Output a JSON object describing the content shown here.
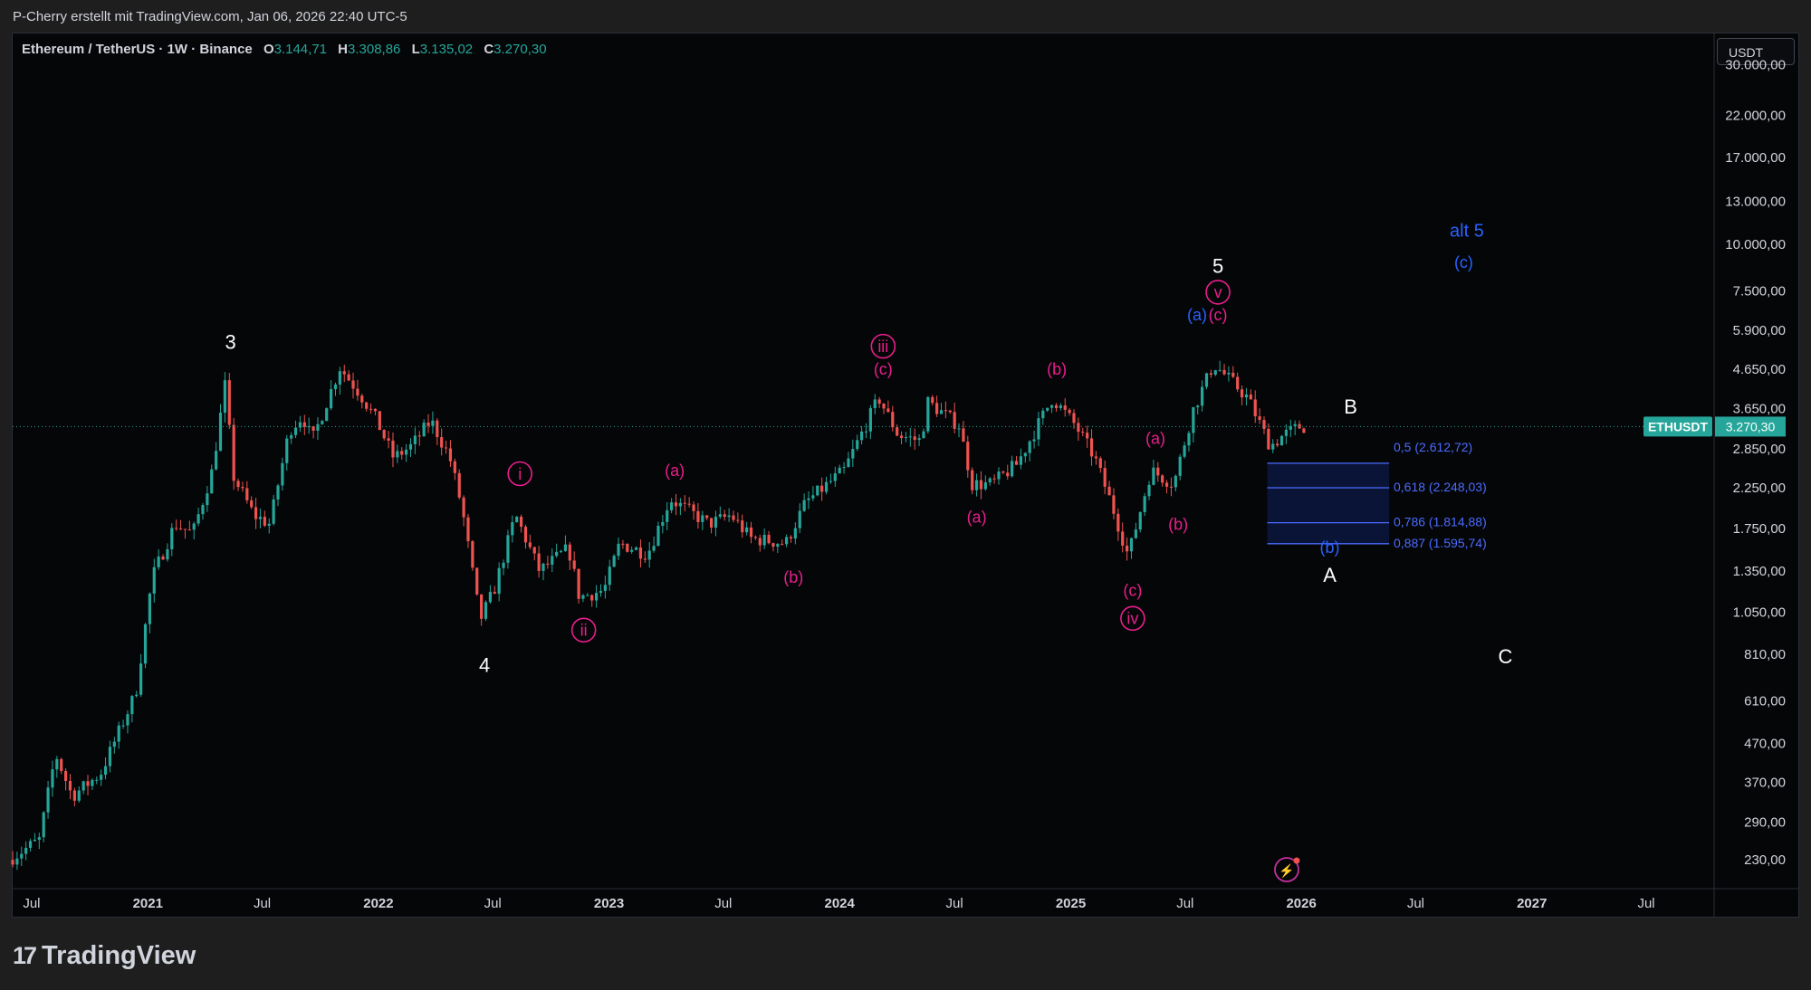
{
  "header": {
    "attribution": "P-Cherry erstellt mit TradingView.com, Jan 06, 2026 22:40 UTC-5"
  },
  "legend": {
    "symbol": "Ethereum / TetherUS · 1W · Binance",
    "open_key": "O",
    "open": "3.144,71",
    "high_key": "H",
    "high": "3.308,86",
    "low_key": "L",
    "low": "3.135,02",
    "close_key": "C",
    "close": "3.270,30"
  },
  "currency_button": "USDT",
  "price_tag": {
    "symbol": "ETHUSDT",
    "value": "3.270,30"
  },
  "footer": {
    "brand": "TradingView",
    "logo_glyph": "17"
  },
  "colors": {
    "up": "#26a69a",
    "down": "#ef5350",
    "wave_white": "#ffffff",
    "wave_magenta": "#e91e8c",
    "wave_blue": "#2962ff",
    "fib": "#4a6cff"
  },
  "chart_data": {
    "type": "candlestick",
    "interval": "1W",
    "scale": "log",
    "y_ticks": [
      "30.000,00",
      "22.000,00",
      "17.000,00",
      "13.000,00",
      "10.000,00",
      "7.500,00",
      "5.900,00",
      "4.650,00",
      "3.650,00",
      "2.850,00",
      "2.250,00",
      "1.750,00",
      "1.350,00",
      "1.050,00",
      "810,00",
      "610,00",
      "470,00",
      "370,00",
      "290,00",
      "230,00"
    ],
    "y_tick_values": [
      30000,
      22000,
      17000,
      13000,
      10000,
      7500,
      5900,
      4650,
      3650,
      2850,
      2250,
      1750,
      1350,
      1050,
      810,
      610,
      470,
      370,
      290,
      230
    ],
    "x_ticks": [
      "Jul",
      "2021",
      "Jul",
      "2022",
      "Jul",
      "2023",
      "Jul",
      "2024",
      "Jul",
      "2025",
      "Jul",
      "2026",
      "Jul",
      "2027",
      "Jul"
    ],
    "x_tick_dates": [
      "2020-07-01",
      "2021-01-01",
      "2021-07-01",
      "2022-01-01",
      "2022-07-01",
      "2023-01-01",
      "2023-07-01",
      "2024-01-01",
      "2024-07-01",
      "2025-01-01",
      "2025-07-01",
      "2026-01-01",
      "2026-07-01",
      "2027-01-01",
      "2027-07-01"
    ],
    "x_range": [
      "2020-06-01",
      "2027-10-15"
    ],
    "y_range": [
      195,
      32000
    ],
    "last_price": 3270.3,
    "price_path": [
      [
        "2020-06-01",
        230
      ],
      [
        "2020-07-20",
        260
      ],
      [
        "2020-08-15",
        440
      ],
      [
        "2020-09-10",
        340
      ],
      [
        "2020-10-25",
        390
      ],
      [
        "2020-12-20",
        640
      ],
      [
        "2021-01-15",
        1300
      ],
      [
        "2021-02-20",
        1800
      ],
      [
        "2021-03-20",
        1700
      ],
      [
        "2021-04-20",
        2500
      ],
      [
        "2021-05-10",
        4200
      ],
      [
        "2021-05-24",
        2400
      ],
      [
        "2021-06-25",
        1900
      ],
      [
        "2021-07-20",
        1800
      ],
      [
        "2021-08-20",
        3200
      ],
      [
        "2021-09-10",
        3500
      ],
      [
        "2021-09-25",
        3000
      ],
      [
        "2021-11-08",
        4700
      ],
      [
        "2021-12-10",
        4000
      ],
      [
        "2022-01-05",
        3400
      ],
      [
        "2022-02-01",
        2700
      ],
      [
        "2022-03-01",
        2900
      ],
      [
        "2022-04-01",
        3400
      ],
      [
        "2022-05-01",
        2700
      ],
      [
        "2022-05-20",
        2000
      ],
      [
        "2022-06-18",
        1000
      ],
      [
        "2022-07-10",
        1200
      ],
      [
        "2022-08-13",
        1900
      ],
      [
        "2022-09-20",
        1350
      ],
      [
        "2022-11-05",
        1550
      ],
      [
        "2022-11-22",
        1150
      ],
      [
        "2022-12-31",
        1200
      ],
      [
        "2023-01-25",
        1600
      ],
      [
        "2023-03-10",
        1500
      ],
      [
        "2023-04-15",
        2100
      ],
      [
        "2023-06-15",
        1800
      ],
      [
        "2023-07-20",
        1900
      ],
      [
        "2023-08-20",
        1650
      ],
      [
        "2023-10-15",
        1600
      ],
      [
        "2023-11-15",
        2050
      ],
      [
        "2024-01-15",
        2500
      ],
      [
        "2024-03-10",
        3900
      ],
      [
        "2024-04-10",
        3100
      ],
      [
        "2024-05-15",
        3000
      ],
      [
        "2024-05-27",
        3800
      ],
      [
        "2024-07-15",
        3300
      ],
      [
        "2024-08-05",
        2300
      ],
      [
        "2024-09-05",
        2300
      ],
      [
        "2024-10-15",
        2600
      ],
      [
        "2024-12-10",
        3900
      ],
      [
        "2025-01-15",
        3300
      ],
      [
        "2025-02-15",
        2700
      ],
      [
        "2025-03-15",
        2000
      ],
      [
        "2025-04-09",
        1480
      ],
      [
        "2025-05-15",
        2500
      ],
      [
        "2025-06-20",
        2300
      ],
      [
        "2025-07-20",
        3600
      ],
      [
        "2025-08-22",
        4800
      ],
      [
        "2025-09-20",
        4300
      ],
      [
        "2025-10-15",
        3900
      ],
      [
        "2025-11-20",
        2900
      ],
      [
        "2025-12-10",
        3100
      ],
      [
        "2026-01-05",
        3270
      ]
    ],
    "annotations": [
      {
        "text": "3",
        "date": "2021-05-12",
        "price": 5500,
        "color": "white",
        "circled": false
      },
      {
        "text": "4",
        "date": "2022-06-18",
        "price": 760,
        "color": "white",
        "circled": false
      },
      {
        "text": "5",
        "date": "2025-08-22",
        "price": 8750,
        "color": "white",
        "circled": false
      },
      {
        "text": "B",
        "date": "2026-03-20",
        "price": 3700,
        "color": "white",
        "circled": false
      },
      {
        "text": "A",
        "date": "2026-02-15",
        "price": 1320,
        "color": "white",
        "circled": false
      },
      {
        "text": "C",
        "date": "2026-11-20",
        "price": 800,
        "color": "white",
        "circled": false
      },
      {
        "text": "i",
        "date": "2022-08-13",
        "price": 2450,
        "color": "magenta",
        "circled": true
      },
      {
        "text": "ii",
        "date": "2022-11-22",
        "price": 940,
        "color": "magenta",
        "circled": true
      },
      {
        "text": "iii",
        "date": "2024-03-10",
        "price": 5350,
        "color": "magenta",
        "circled": true
      },
      {
        "text": "iv",
        "date": "2025-04-09",
        "price": 1010,
        "color": "magenta",
        "circled": true
      },
      {
        "text": "v",
        "date": "2025-08-22",
        "price": 7450,
        "color": "magenta",
        "circled": true
      },
      {
        "text": "(a)",
        "date": "2023-04-15",
        "price": 2500,
        "color": "magenta",
        "circled": false
      },
      {
        "text": "(b)",
        "date": "2023-10-20",
        "price": 1300,
        "color": "magenta",
        "circled": false
      },
      {
        "text": "(c)",
        "date": "2024-03-10",
        "price": 4650,
        "color": "magenta",
        "circled": false
      },
      {
        "text": "(a)",
        "date": "2024-08-05",
        "price": 1880,
        "color": "magenta",
        "circled": false
      },
      {
        "text": "(b)",
        "date": "2024-12-10",
        "price": 4660,
        "color": "magenta",
        "circled": false
      },
      {
        "text": "(c)",
        "date": "2025-04-09",
        "price": 1200,
        "color": "magenta",
        "circled": false
      },
      {
        "text": "(a)",
        "date": "2025-05-15",
        "price": 3050,
        "color": "magenta",
        "circled": false
      },
      {
        "text": "(b)",
        "date": "2025-06-20",
        "price": 1800,
        "color": "magenta",
        "circled": false
      },
      {
        "text": "(c)",
        "date": "2025-08-22",
        "price": 6500,
        "color": "magenta",
        "circled": false
      },
      {
        "text": "(a)",
        "date": "2025-07-20",
        "price": 6500,
        "color": "blue",
        "circled": false
      },
      {
        "text": "(b)",
        "date": "2026-02-15",
        "price": 1560,
        "color": "blue",
        "circled": false
      },
      {
        "text": "alt 5",
        "date": "2026-09-20",
        "price": 10900,
        "color": "blue",
        "circled": false
      },
      {
        "text": "(c)",
        "date": "2026-09-15",
        "price": 8950,
        "color": "blue",
        "circled": false
      }
    ],
    "fib_levels": [
      {
        "label": "0,5 (2.612,72)",
        "ratio": 0.5,
        "price": 2612.72
      },
      {
        "label": "0,618 (2.248,03)",
        "ratio": 0.618,
        "price": 2248.03
      },
      {
        "label": "0,786 (1.814,88)",
        "ratio": 0.786,
        "price": 1814.88
      },
      {
        "label": "0,887 (1.595,74)",
        "ratio": 0.887,
        "price": 1595.74
      }
    ],
    "fib_zone": {
      "start": "2025-11-08",
      "end": "2026-05-20"
    }
  }
}
